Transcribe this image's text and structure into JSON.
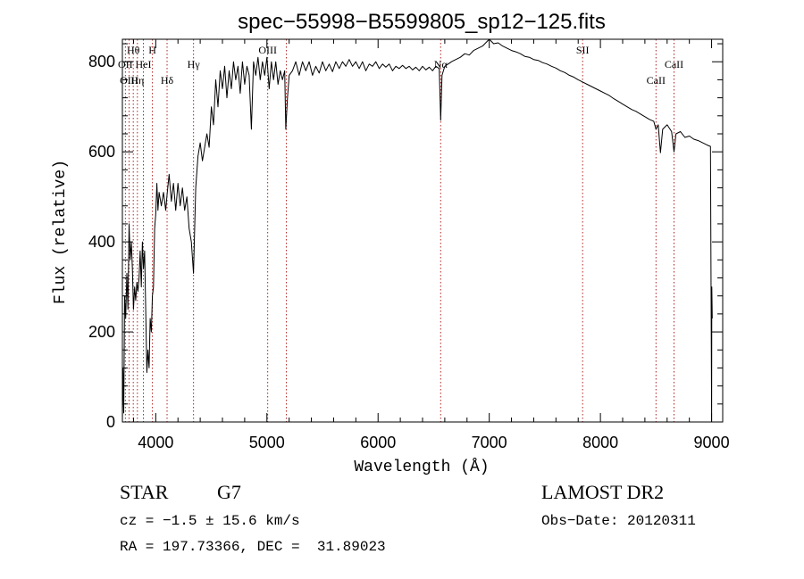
{
  "chart_data": {
    "type": "line",
    "title": "spec−55998−B5599805_sp12−125.fits",
    "xlabel": "Wavelength (Å)",
    "ylabel": "Flux (relative)",
    "xlim": [
      3700,
      9100
    ],
    "ylim": [
      0,
      850
    ],
    "x_ticks": [
      4000,
      5000,
      6000,
      7000,
      8000,
      9000
    ],
    "y_ticks": [
      0,
      200,
      400,
      600,
      800
    ],
    "grid": false,
    "line_color": "#000000",
    "marker_color": "#b22222",
    "series": [
      {
        "name": "spectrum",
        "points": [
          [
            3700,
            0
          ],
          [
            3705,
            120
          ],
          [
            3712,
            20
          ],
          [
            3720,
            280
          ],
          [
            3730,
            230
          ],
          [
            3740,
            330
          ],
          [
            3750,
            250
          ],
          [
            3760,
            440
          ],
          [
            3770,
            360
          ],
          [
            3780,
            400
          ],
          [
            3790,
            340
          ],
          [
            3800,
            250
          ],
          [
            3810,
            300
          ],
          [
            3820,
            270
          ],
          [
            3830,
            310
          ],
          [
            3840,
            290
          ],
          [
            3850,
            320
          ],
          [
            3860,
            380
          ],
          [
            3870,
            300
          ],
          [
            3880,
            400
          ],
          [
            3890,
            340
          ],
          [
            3900,
            380
          ],
          [
            3910,
            250
          ],
          [
            3920,
            110
          ],
          [
            3930,
            160
          ],
          [
            3940,
            120
          ],
          [
            3950,
            230
          ],
          [
            3960,
            200
          ],
          [
            3970,
            280
          ],
          [
            3980,
            300
          ],
          [
            3990,
            430
          ],
          [
            4000,
            460
          ],
          [
            4010,
            530
          ],
          [
            4020,
            470
          ],
          [
            4030,
            510
          ],
          [
            4050,
            480
          ],
          [
            4070,
            510
          ],
          [
            4090,
            470
          ],
          [
            4100,
            500
          ],
          [
            4120,
            550
          ],
          [
            4140,
            490
          ],
          [
            4160,
            530
          ],
          [
            4180,
            470
          ],
          [
            4200,
            530
          ],
          [
            4220,
            480
          ],
          [
            4240,
            520
          ],
          [
            4260,
            470
          ],
          [
            4280,
            500
          ],
          [
            4300,
            430
          ],
          [
            4320,
            400
          ],
          [
            4340,
            330
          ],
          [
            4360,
            520
          ],
          [
            4380,
            590
          ],
          [
            4400,
            620
          ],
          [
            4420,
            580
          ],
          [
            4440,
            610
          ],
          [
            4460,
            640
          ],
          [
            4480,
            610
          ],
          [
            4500,
            700
          ],
          [
            4520,
            660
          ],
          [
            4540,
            760
          ],
          [
            4560,
            700
          ],
          [
            4580,
            780
          ],
          [
            4600,
            740
          ],
          [
            4620,
            790
          ],
          [
            4640,
            720
          ],
          [
            4660,
            780
          ],
          [
            4680,
            740
          ],
          [
            4700,
            800
          ],
          [
            4720,
            760
          ],
          [
            4740,
            790
          ],
          [
            4760,
            730
          ],
          [
            4780,
            800
          ],
          [
            4800,
            750
          ],
          [
            4820,
            790
          ],
          [
            4840,
            770
          ],
          [
            4860,
            650
          ],
          [
            4880,
            800
          ],
          [
            4900,
            770
          ],
          [
            4920,
            810
          ],
          [
            4940,
            760
          ],
          [
            4960,
            800
          ],
          [
            4980,
            770
          ],
          [
            5000,
            810
          ],
          [
            5020,
            740
          ],
          [
            5040,
            800
          ],
          [
            5060,
            760
          ],
          [
            5080,
            800
          ],
          [
            5100,
            750
          ],
          [
            5120,
            780
          ],
          [
            5140,
            760
          ],
          [
            5160,
            780
          ],
          [
            5170,
            650
          ],
          [
            5185,
            720
          ],
          [
            5200,
            770
          ],
          [
            5230,
            780
          ],
          [
            5260,
            800
          ],
          [
            5290,
            770
          ],
          [
            5320,
            800
          ],
          [
            5350,
            780
          ],
          [
            5380,
            800
          ],
          [
            5410,
            770
          ],
          [
            5440,
            790
          ],
          [
            5470,
            775
          ],
          [
            5500,
            800
          ],
          [
            5530,
            780
          ],
          [
            5560,
            795
          ],
          [
            5590,
            778
          ],
          [
            5620,
            800
          ],
          [
            5650,
            785
          ],
          [
            5680,
            800
          ],
          [
            5710,
            790
          ],
          [
            5740,
            805
          ],
          [
            5770,
            790
          ],
          [
            5800,
            800
          ],
          [
            5830,
            785
          ],
          [
            5860,
            800
          ],
          [
            5890,
            780
          ],
          [
            5920,
            795
          ],
          [
            5950,
            790
          ],
          [
            5980,
            800
          ],
          [
            6010,
            785
          ],
          [
            6040,
            795
          ],
          [
            6070,
            788
          ],
          [
            6100,
            795
          ],
          [
            6130,
            780
          ],
          [
            6160,
            790
          ],
          [
            6190,
            785
          ],
          [
            6220,
            792
          ],
          [
            6250,
            785
          ],
          [
            6280,
            790
          ],
          [
            6310,
            782
          ],
          [
            6340,
            788
          ],
          [
            6370,
            780
          ],
          [
            6400,
            790
          ],
          [
            6430,
            782
          ],
          [
            6460,
            788
          ],
          [
            6490,
            780
          ],
          [
            6520,
            790
          ],
          [
            6550,
            785
          ],
          [
            6563,
            670
          ],
          [
            6575,
            770
          ],
          [
            6600,
            790
          ],
          [
            6630,
            795
          ],
          [
            6660,
            800
          ],
          [
            6700,
            805
          ],
          [
            6740,
            810
          ],
          [
            6780,
            818
          ],
          [
            6820,
            815
          ],
          [
            6860,
            825
          ],
          [
            6900,
            830
          ],
          [
            6940,
            835
          ],
          [
            6980,
            845
          ],
          [
            7000,
            850
          ],
          [
            7040,
            840
          ],
          [
            7080,
            842
          ],
          [
            7120,
            835
          ],
          [
            7160,
            830
          ],
          [
            7200,
            825
          ],
          [
            7240,
            822
          ],
          [
            7280,
            818
          ],
          [
            7320,
            812
          ],
          [
            7360,
            810
          ],
          [
            7400,
            805
          ],
          [
            7440,
            803
          ],
          [
            7480,
            798
          ],
          [
            7520,
            795
          ],
          [
            7560,
            790
          ],
          [
            7600,
            786
          ],
          [
            7640,
            780
          ],
          [
            7680,
            776
          ],
          [
            7720,
            770
          ],
          [
            7760,
            766
          ],
          [
            7800,
            760
          ],
          [
            7840,
            755
          ],
          [
            7880,
            750
          ],
          [
            7920,
            745
          ],
          [
            7960,
            740
          ],
          [
            8000,
            735
          ],
          [
            8040,
            730
          ],
          [
            8080,
            725
          ],
          [
            8120,
            718
          ],
          [
            8160,
            712
          ],
          [
            8200,
            706
          ],
          [
            8240,
            700
          ],
          [
            8280,
            694
          ],
          [
            8320,
            690
          ],
          [
            8360,
            684
          ],
          [
            8400,
            678
          ],
          [
            8440,
            672
          ],
          [
            8480,
            668
          ],
          [
            8500,
            650
          ],
          [
            8520,
            660
          ],
          [
            8540,
            598
          ],
          [
            8560,
            650
          ],
          [
            8600,
            660
          ],
          [
            8640,
            645
          ],
          [
            8662,
            600
          ],
          [
            8680,
            640
          ],
          [
            8720,
            645
          ],
          [
            8760,
            632
          ],
          [
            8800,
            635
          ],
          [
            8840,
            628
          ],
          [
            8880,
            625
          ],
          [
            8920,
            620
          ],
          [
            8960,
            615
          ],
          [
            8990,
            612
          ],
          [
            9000,
            0
          ],
          [
            9002,
            300
          ],
          [
            9006,
            230
          ]
        ]
      }
    ],
    "line_markers": [
      {
        "label": "Hθ",
        "x": 3798,
        "row": 1
      },
      {
        "label": "OII",
        "x": 3727,
        "row": 2
      },
      {
        "label": "OIII",
        "x": 3760,
        "row": 3
      },
      {
        "label": "H",
        "x": 3970,
        "row": 1
      },
      {
        "label": "HeI",
        "x": 3889,
        "row": 2
      },
      {
        "label": "Hη",
        "x": 3835,
        "row": 3
      },
      {
        "label": "Hδ",
        "x": 4102,
        "row": 3
      },
      {
        "label": "Hγ",
        "x": 4340,
        "row": 2
      },
      {
        "label": "OIII",
        "x": 5007,
        "row": 1
      },
      {
        "label": "",
        "x": 5175,
        "row": 0
      },
      {
        "label": "Nα",
        "x": 6563,
        "row": 2
      },
      {
        "label": "SII",
        "x": 7840,
        "row": 1
      },
      {
        "label": "CaII",
        "x": 8662,
        "row": 2
      },
      {
        "label": "CaII",
        "x": 8500,
        "row": 3
      }
    ]
  },
  "info": {
    "class": "STAR",
    "subclass": "G7",
    "survey": "LAMOST DR2",
    "cz": "cz = −1.5 ± 15.6 km/s",
    "obs_date": "Obs−Date: 20120311",
    "radec": "RA = 197.73366, DEC =  31.89023"
  }
}
